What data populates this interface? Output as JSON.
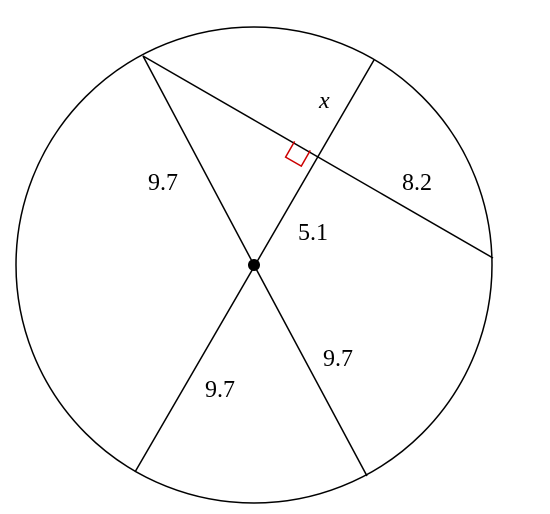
{
  "diagram": {
    "labels": {
      "upper_left_radius": "9.7",
      "lower_left_radius": "9.7",
      "lower_right_radius": "9.7",
      "distance_to_chord": "5.1",
      "chord_segment_right": "8.2",
      "unknown_segment": "x"
    },
    "colors": {
      "lines": "#000000",
      "right_angle_mark": "#cc0000"
    }
  }
}
